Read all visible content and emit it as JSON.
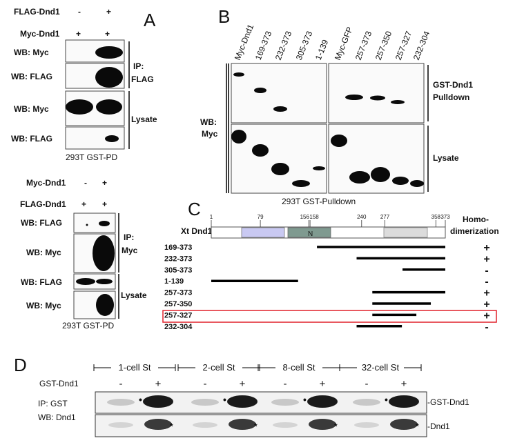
{
  "panel_a": {
    "letter": "A",
    "top": {
      "row_labels": [
        "FLAG-Dnd1",
        "Myc-Dnd1"
      ],
      "row_values": [
        [
          "-",
          "+"
        ],
        [
          "+",
          "+"
        ]
      ],
      "blots": [
        "WB: Myc",
        "WB: FLAG",
        "WB: Myc",
        "WB: FLAG"
      ],
      "ip_label": "IP:",
      "ip_sub": "FLAG",
      "lysate": "Lysate",
      "footer": "293T GST-PD"
    },
    "bottom": {
      "row_labels": [
        "Myc-Dnd1",
        "FLAG-Dnd1"
      ],
      "row_values": [
        [
          "-",
          "+"
        ],
        [
          "+",
          "+"
        ]
      ],
      "blots": [
        "WB: FLAG",
        "WB: Myc",
        "WB: FLAG",
        "WB: Myc"
      ],
      "ip_label": "IP:",
      "ip_sub": "Myc",
      "lysate": "Lysate",
      "footer": "293T GST-PD"
    }
  },
  "panel_b": {
    "letter": "B",
    "lanes": [
      "Myc-Dnd1",
      "169-373",
      "232-373",
      "305-373",
      "1-139",
      "Myc-GFP",
      "257-373",
      "257-350",
      "257-327",
      "232-304"
    ],
    "wb_label_1": "WB:",
    "wb_label_2": "Myc",
    "pulldown_1": "GST-Dnd1",
    "pulldown_2": "Pulldown",
    "lysate": "Lysate",
    "footer": "293T GST-Pulldown"
  },
  "panel_c": {
    "letter": "C",
    "protein": "Xt Dnd1",
    "ticks": [
      "1",
      "79",
      "156",
      "158",
      "240",
      "277",
      "358",
      "373"
    ],
    "domain_label": "N",
    "column_1": "Homo-",
    "column_2": "dimerization",
    "constructs": [
      {
        "name": "169-373",
        "result": "+"
      },
      {
        "name": "232-373",
        "result": "+"
      },
      {
        "name": "305-373",
        "result": "-"
      },
      {
        "name": "1-139",
        "result": "-"
      },
      {
        "name": "257-373",
        "result": "+"
      },
      {
        "name": "257-350",
        "result": "+"
      },
      {
        "name": "257-327",
        "result": "+"
      },
      {
        "name": "232-304",
        "result": "-"
      }
    ],
    "highlight_color": "#e0202a",
    "domain_colors": {
      "rrm": "#c9c9f2",
      "n": "#7f9a90",
      "c": "#dcdcdc"
    }
  },
  "panel_d": {
    "letter": "D",
    "stages": [
      "1-cell St",
      "2-cell St",
      "8-cell St",
      "32-cell St"
    ],
    "gst_label": "GST-Dnd1",
    "signs": [
      "-",
      "+"
    ],
    "ip_label": "IP: GST",
    "wb_label": "WB: Dnd1",
    "right_top": "-GST-Dnd1",
    "right_bottom": "-Dnd1",
    "dot_mark": "•",
    "star_mark": "*"
  }
}
